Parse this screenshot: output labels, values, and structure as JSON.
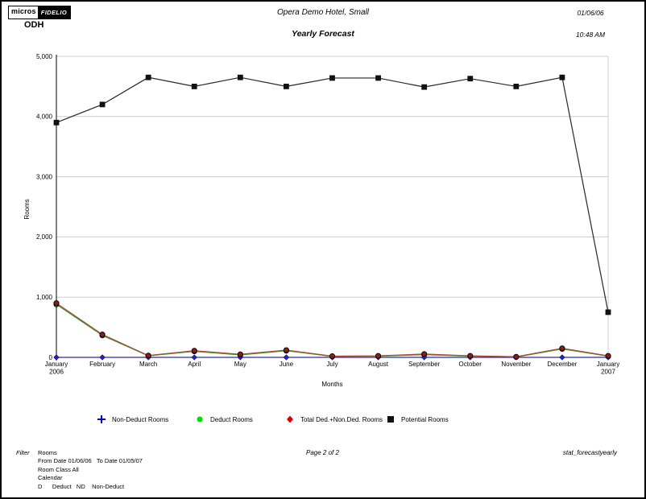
{
  "header": {
    "logo_micros": "micros",
    "logo_fidelio": "FIDELIO",
    "property_code": "ODH",
    "title": "Opera Demo Hotel, Small",
    "subtitle": "Yearly Forecast",
    "date": "01/06/06",
    "time": "10:48 AM"
  },
  "chart_data": {
    "type": "line",
    "title": "Yearly Forecast",
    "xlabel": "Months",
    "ylabel": "Rooms",
    "ylim": [
      0,
      5000
    ],
    "ytick_interval": 1000,
    "ytick_labels": [
      "0",
      "1,000",
      "2,000",
      "3,000",
      "4,000",
      "5,000"
    ],
    "grid": true,
    "legend_position": "bottom",
    "categories": [
      [
        "January",
        "2006"
      ],
      [
        "February"
      ],
      [
        "March"
      ],
      [
        "April"
      ],
      [
        "May"
      ],
      [
        "June"
      ],
      [
        "July"
      ],
      [
        "August"
      ],
      [
        "September"
      ],
      [
        "October"
      ],
      [
        "November"
      ],
      [
        "December"
      ],
      [
        "January",
        "2007"
      ]
    ],
    "series": [
      {
        "name": "Deduct Rooms",
        "color": "#2F9E2F",
        "marker": "circle",
        "marker_fill": "#22CC22",
        "values": [
          880,
          365,
          25,
          100,
          40,
          110,
          15,
          20,
          45,
          20,
          5,
          140,
          20
        ]
      },
      {
        "name": "Non-Deduct Rooms",
        "color": "#2A2AAE",
        "marker": "diamond",
        "marker_fill": "#2222CC",
        "values": [
          0,
          0,
          0,
          0,
          0,
          0,
          0,
          0,
          0,
          0,
          0,
          0,
          0
        ]
      },
      {
        "name": "Total Ded.+Non.Ded. Rooms",
        "color": "#AD4531",
        "marker": "circle",
        "marker_fill": "#8B1D14",
        "values": [
          900,
          380,
          30,
          110,
          50,
          120,
          20,
          25,
          55,
          25,
          10,
          150,
          25
        ]
      },
      {
        "name": "Potential Rooms",
        "color": "#262626",
        "marker": "square",
        "marker_fill": "#111111",
        "values": [
          3900,
          4200,
          4650,
          4500,
          4650,
          4500,
          4640,
          4640,
          4490,
          4630,
          4500,
          4650,
          750
        ]
      }
    ]
  },
  "legend": {
    "items": [
      {
        "label": "Non-Deduct Rooms",
        "marker": "plus",
        "color": "#0000CC"
      },
      {
        "label": "Deduct Rooms",
        "marker": "circle",
        "color": "#00DD00"
      },
      {
        "label": "Total Ded.+Non.Ded. Rooms",
        "marker": "diamond",
        "color": "#DD0000"
      },
      {
        "label": "Potential Rooms",
        "marker": "square",
        "color": "#111111"
      }
    ]
  },
  "footer": {
    "filter_label": "Filter",
    "filter_lines": [
      "Rooms",
      "From Date 01/06/06   To Date 01/05/07",
      "Room Class All",
      "Calendar",
      "D      Deduct   ND    Non-Deduct"
    ],
    "page": "Page 2  of 2",
    "report_id": "stat_forecastyearly"
  }
}
